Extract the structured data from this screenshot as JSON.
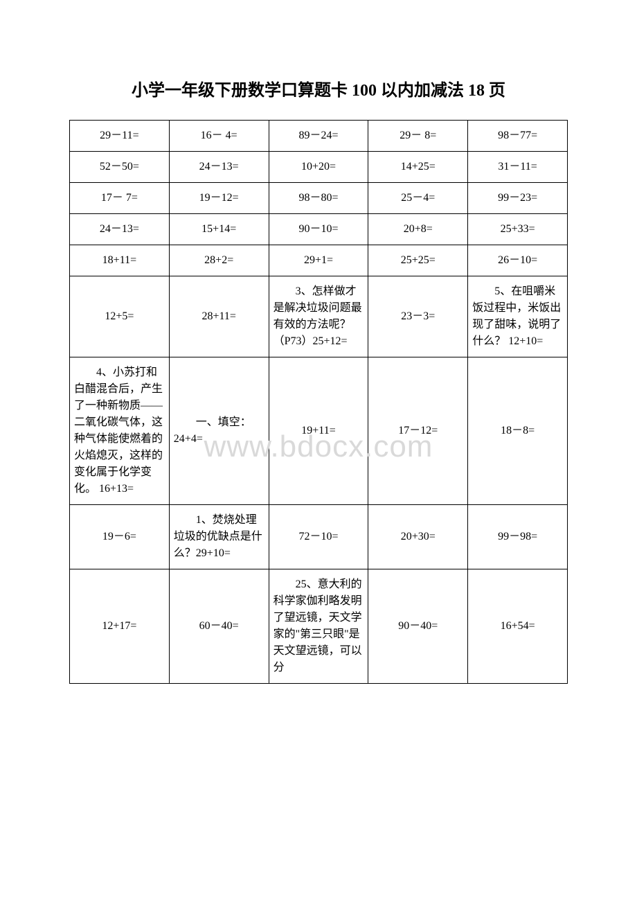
{
  "title": "小学一年级下册数学口算题卡 100 以内加减法 18 页",
  "watermark": "www.bdocx.com",
  "table": {
    "columns": 5,
    "rows": [
      [
        "29－11=",
        "16－ 4=",
        "89－24=",
        "29－ 8=",
        "98－77="
      ],
      [
        "52－50=",
        "24－13=",
        "10+20=",
        "14+25=",
        "31－11="
      ],
      [
        "17－ 7=",
        "19－12=",
        "98－80=",
        "25－4=",
        "99－23="
      ],
      [
        "24－13=",
        "15+14=",
        "90－10=",
        "20+8=",
        "25+33="
      ],
      [
        "18+11=",
        "28+2=",
        "29+1=",
        "25+25=",
        "26－10="
      ],
      [
        "12+5=",
        "28+11=",
        "3、怎样做才是解决垃圾问题最有效的方法呢？（P73）25+12=",
        "23－3=",
        "5、在咀嚼米饭过程中，米饭出现了甜味，说明了什么？ 12+10="
      ],
      [
        "4、小苏打和白醋混合后，产生了一种新物质——二氧化碳气体，这种气体能使燃着的火焰熄灭，这样的变化属于化学变化。 16+13=",
        "一、填空：24+4=",
        "19+11=",
        "17－12=",
        "18－8="
      ],
      [
        "19－6=",
        "1、焚烧处理垃圾的优缺点是什么？29+10=",
        "72－10=",
        "20+30=",
        "99－98="
      ],
      [
        "12+17=",
        "60－40=",
        "25、意大利的科学家伽利略发明了望远镜，天文学家的\"第三只眼\"是天文望远镜，可以分",
        "90－40=",
        "16+54="
      ]
    ],
    "text_cells": [
      [
        5,
        2
      ],
      [
        5,
        4
      ],
      [
        6,
        0
      ],
      [
        6,
        1
      ],
      [
        7,
        1
      ],
      [
        8,
        2
      ]
    ],
    "border_color": "#000000",
    "cell_font_size": 16,
    "title_font_size": 24,
    "background_color": "#ffffff",
    "watermark_color": "#d9d9d9",
    "watermark_font_size": 44
  }
}
